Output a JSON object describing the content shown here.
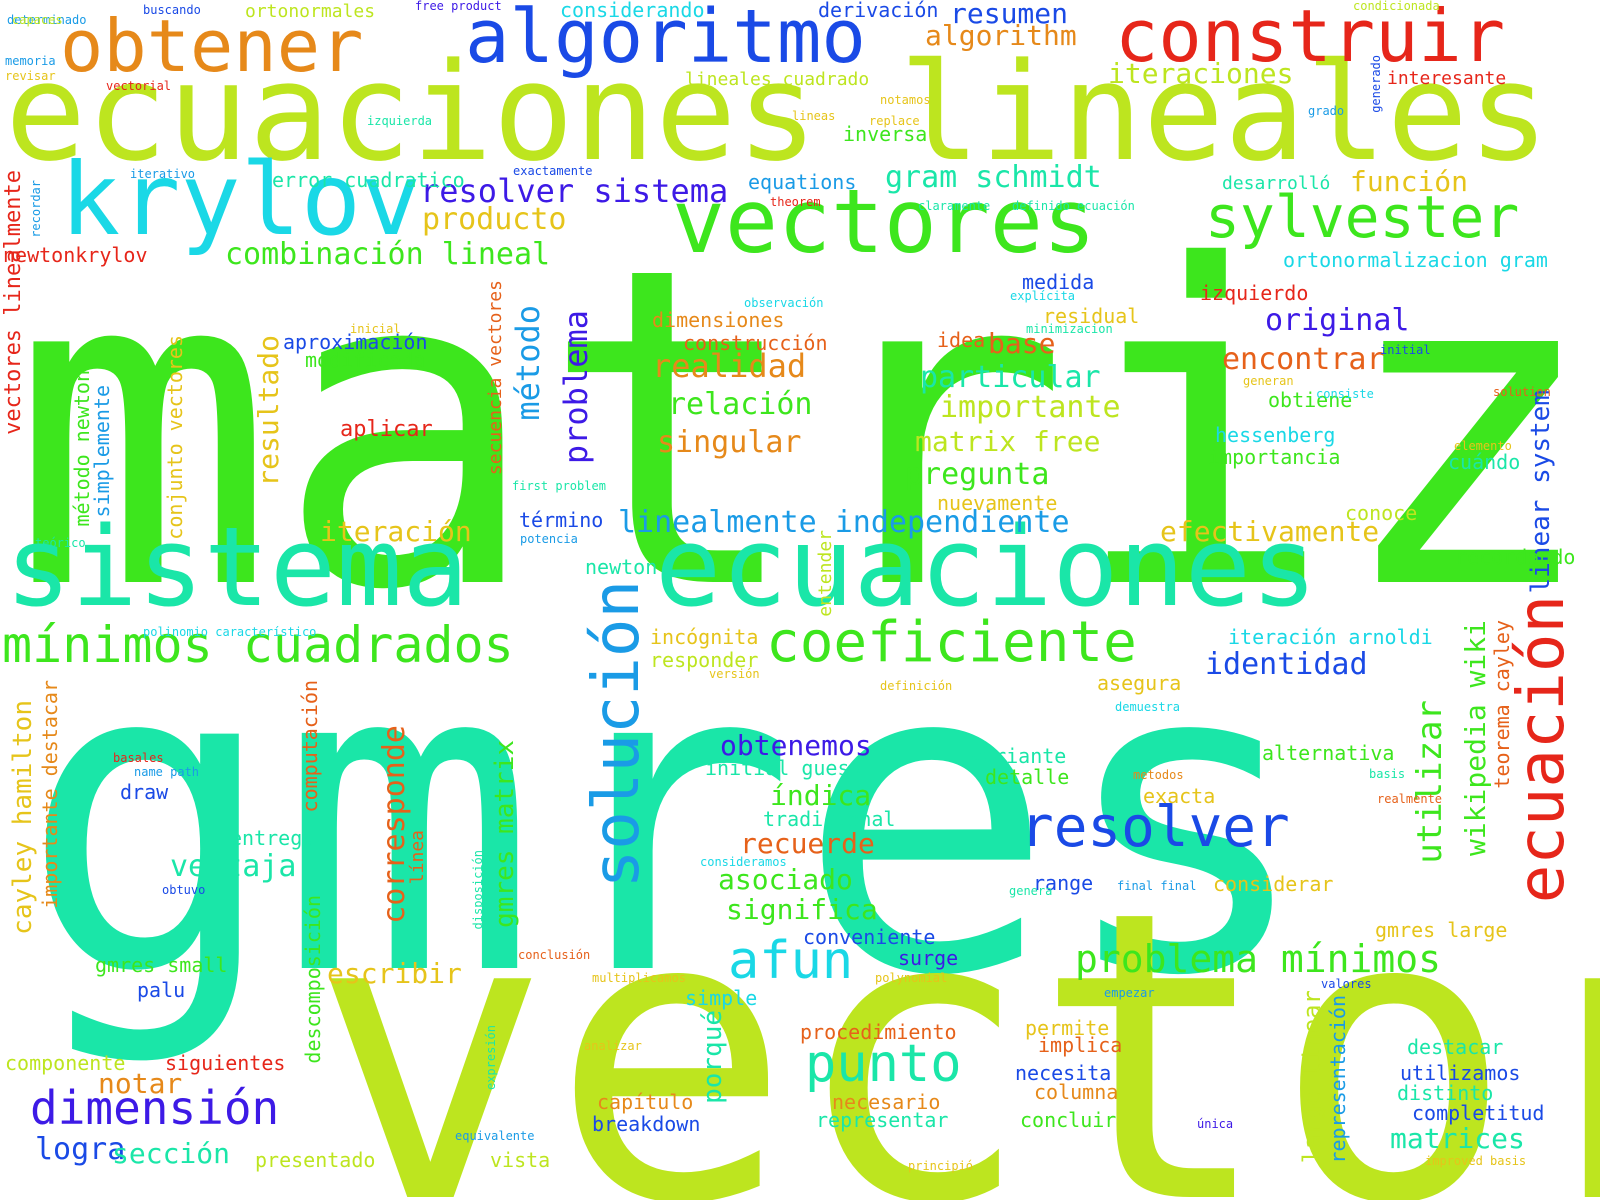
{
  "colors": {
    "background": "#ffffff",
    "lime": "#bde51f",
    "green": "#3de61d",
    "teal": "#1ae6a8",
    "cyan": "#1ad8e6",
    "sky": "#1a9be6",
    "blue": "#1a4ae6",
    "indigo": "#3d1ae6",
    "orange": "#e6891a",
    "amber": "#e6c41a",
    "red": "#e6261a",
    "darkorange": "#e6611a"
  },
  "words": [
    {
      "text": "matriz",
      "color": "green"
    },
    {
      "text": "gmres",
      "color": "teal"
    },
    {
      "text": "vector",
      "color": "lime"
    },
    {
      "text": "ecuaciones lineales",
      "color": "lime"
    },
    {
      "text": "sistema",
      "color": "teal"
    },
    {
      "text": "ecuaciones",
      "color": "teal"
    },
    {
      "text": "krylov",
      "color": "cyan"
    },
    {
      "text": "vectores",
      "color": "green"
    },
    {
      "text": "construir",
      "color": "red"
    },
    {
      "text": "algoritmo",
      "color": "blue"
    },
    {
      "text": "obtener",
      "color": "orange"
    },
    {
      "text": "solución",
      "color": "sky"
    },
    {
      "text": "ecuación",
      "color": "red"
    },
    {
      "text": "coeficiente",
      "color": "green"
    },
    {
      "text": "sylvester",
      "color": "green"
    },
    {
      "text": "mínimos cuadrados",
      "color": "green"
    },
    {
      "text": "resolver",
      "color": "blue"
    },
    {
      "text": "dimensión",
      "color": "indigo"
    },
    {
      "text": "punto",
      "color": "teal"
    },
    {
      "text": "afun",
      "color": "cyan"
    },
    {
      "text": "problema mínimos",
      "color": "green"
    },
    {
      "text": "resolver sistema",
      "color": "indigo"
    },
    {
      "text": "gram schmidt",
      "color": "teal"
    },
    {
      "text": "combinación lineal",
      "color": "green"
    },
    {
      "text": "linealmente independiente",
      "color": "sky"
    },
    {
      "text": "producto",
      "color": "amber"
    },
    {
      "text": "algorithm",
      "color": "orange"
    },
    {
      "text": "iteraciones",
      "color": "lime"
    },
    {
      "text": "resumen",
      "color": "blue"
    },
    {
      "text": "función",
      "color": "amber"
    },
    {
      "text": "original",
      "color": "indigo"
    },
    {
      "text": "encontrar",
      "color": "darkorange"
    },
    {
      "text": "realidad",
      "color": "orange"
    },
    {
      "text": "particular",
      "color": "teal"
    },
    {
      "text": "importante",
      "color": "lime"
    },
    {
      "text": "relación",
      "color": "green"
    },
    {
      "text": "singular",
      "color": "orange"
    },
    {
      "text": "matrix free",
      "color": "lime"
    },
    {
      "text": "pregunta",
      "color": "green"
    },
    {
      "text": "base",
      "color": "darkorange"
    },
    {
      "text": "iteración",
      "color": "amber"
    },
    {
      "text": "efectivamente",
      "color": "amber"
    },
    {
      "text": "identidad",
      "color": "blue"
    },
    {
      "text": "obtenemos",
      "color": "indigo"
    },
    {
      "text": "índica",
      "color": "green"
    },
    {
      "text": "recuerde",
      "color": "darkorange"
    },
    {
      "text": "asociado",
      "color": "green"
    },
    {
      "text": "significa",
      "color": "green"
    },
    {
      "text": "ventaja",
      "color": "teal"
    },
    {
      "text": "escribir",
      "color": "amber"
    },
    {
      "text": "notar",
      "color": "orange"
    },
    {
      "text": "logra",
      "color": "blue"
    },
    {
      "text": "sección",
      "color": "teal"
    },
    {
      "text": "matrices",
      "color": "teal"
    },
    {
      "text": "utilizar",
      "color": "green"
    },
    {
      "text": "wikipedia wiki",
      "color": "green"
    },
    {
      "text": "linear system",
      "color": "blue"
    },
    {
      "text": "método",
      "color": "sky"
    },
    {
      "text": "problema",
      "color": "indigo"
    },
    {
      "text": "resultado",
      "color": "amber"
    },
    {
      "text": "corresponde",
      "color": "darkorange"
    },
    {
      "text": "gmres matrix",
      "color": "green"
    },
    {
      "text": "cayley hamilton",
      "color": "amber"
    },
    {
      "text": "porqué",
      "color": "teal"
    },
    {
      "text": "teorema cayley",
      "color": "darkorange"
    },
    {
      "text": "large linear",
      "color": "lime"
    },
    {
      "text": "representación",
      "color": "sky"
    },
    {
      "text": "secuencia vectores",
      "color": "darkorange"
    },
    {
      "text": "conjunto vectores",
      "color": "amber"
    },
    {
      "text": "método newton",
      "color": "green"
    },
    {
      "text": "simplemente",
      "color": "sky"
    },
    {
      "text": "importante destacar",
      "color": "orange"
    },
    {
      "text": "vectores linealmente",
      "color": "red"
    },
    {
      "text": "recordar",
      "color": "sky"
    },
    {
      "text": "computación",
      "color": "darkorange"
    },
    {
      "text": "descomposición",
      "color": "green"
    },
    {
      "text": "línea",
      "color": "darkorange"
    },
    {
      "text": "entender",
      "color": "lime"
    },
    {
      "text": "disposición",
      "color": "teal"
    },
    {
      "text": "expresión",
      "color": "teal"
    },
    {
      "text": "generado",
      "color": "blue"
    },
    {
      "text": "newtonkrylov",
      "color": "red"
    },
    {
      "text": "error cuadratico",
      "color": "teal"
    },
    {
      "text": "equations",
      "color": "sky"
    },
    {
      "text": "desarrolló",
      "color": "teal"
    },
    {
      "text": "inversa",
      "color": "green"
    },
    {
      "text": "ortonormalizacion gram",
      "color": "cyan"
    },
    {
      "text": "izquierdo",
      "color": "red"
    },
    {
      "text": "medida",
      "color": "blue"
    },
    {
      "text": "residual",
      "color": "amber"
    },
    {
      "text": "dimensiones",
      "color": "orange"
    },
    {
      "text": "construcción",
      "color": "darkorange"
    },
    {
      "text": "aproximación",
      "color": "blue"
    },
    {
      "text": "modificada",
      "color": "green"
    },
    {
      "text": "aplicar",
      "color": "red"
    },
    {
      "text": "idea",
      "color": "darkorange"
    },
    {
      "text": "obtiene",
      "color": "green"
    },
    {
      "text": "hessenberg",
      "color": "cyan"
    },
    {
      "text": "importancia",
      "color": "green"
    },
    {
      "text": "cuándo",
      "color": "teal"
    },
    {
      "text": "conoce",
      "color": "lime"
    },
    {
      "text": "recordando",
      "color": "green"
    },
    {
      "text": "nuevamente",
      "color": "amber"
    },
    {
      "text": "término",
      "color": "blue"
    },
    {
      "text": "newton",
      "color": "teal"
    },
    {
      "text": "incógnita",
      "color": "amber"
    },
    {
      "text": "responder",
      "color": "lime"
    },
    {
      "text": "asegura",
      "color": "amber"
    },
    {
      "text": "iteración arnoldi",
      "color": "cyan"
    },
    {
      "text": "initial guess",
      "color": "teal"
    },
    {
      "text": "tradicional",
      "color": "teal"
    },
    {
      "text": "variante",
      "color": "teal"
    },
    {
      "text": "detalle",
      "color": "green"
    },
    {
      "text": "exacta",
      "color": "amber"
    },
    {
      "text": "alternativa",
      "color": "green"
    },
    {
      "text": "considerar",
      "color": "amber"
    },
    {
      "text": "gmres large",
      "color": "amber"
    },
    {
      "text": "range",
      "color": "blue"
    },
    {
      "text": "conveniente",
      "color": "blue"
    },
    {
      "text": "surge",
      "color": "indigo"
    },
    {
      "text": "simple",
      "color": "cyan"
    },
    {
      "text": "procedimiento",
      "color": "darkorange"
    },
    {
      "text": "permite",
      "color": "amber"
    },
    {
      "text": "implica",
      "color": "darkorange"
    },
    {
      "text": "necesita",
      "color": "blue"
    },
    {
      "text": "columna",
      "color": "orange"
    },
    {
      "text": "capítulo",
      "color": "orange"
    },
    {
      "text": "necesario",
      "color": "orange"
    },
    {
      "text": "breakdown",
      "color": "blue"
    },
    {
      "text": "representar",
      "color": "teal"
    },
    {
      "text": "concluir",
      "color": "green"
    },
    {
      "text": "destacar",
      "color": "teal"
    },
    {
      "text": "utilizamos",
      "color": "blue"
    },
    {
      "text": "distinto",
      "color": "teal"
    },
    {
      "text": "completitud",
      "color": "blue"
    },
    {
      "text": "vista",
      "color": "lime"
    },
    {
      "text": "presentado",
      "color": "lime"
    },
    {
      "text": "componente",
      "color": "lime"
    },
    {
      "text": "siguientes",
      "color": "red"
    },
    {
      "text": "gmres small",
      "color": "green"
    },
    {
      "text": "palu",
      "color": "blue"
    },
    {
      "text": "entrega",
      "color": "teal"
    },
    {
      "text": "draw",
      "color": "blue"
    },
    {
      "text": "considerando",
      "color": "cyan"
    },
    {
      "text": "derivación",
      "color": "blue"
    },
    {
      "text": "ortonormales",
      "color": "lime"
    },
    {
      "text": "lineales cuadrado",
      "color": "lime"
    },
    {
      "text": "interesante",
      "color": "red"
    },
    {
      "text": "condicionada",
      "color": "lime"
    },
    {
      "text": "free product",
      "color": "indigo"
    },
    {
      "text": "buscando",
      "color": "blue"
    },
    {
      "text": "determinado",
      "color": "sky"
    },
    {
      "text": "capaces",
      "color": "lime"
    },
    {
      "text": "memoria",
      "color": "sky"
    },
    {
      "text": "revisar",
      "color": "amber"
    },
    {
      "text": "vectorial",
      "color": "red"
    },
    {
      "text": "izquierda",
      "color": "teal"
    },
    {
      "text": "iterativo",
      "color": "sky"
    },
    {
      "text": "exactamente",
      "color": "blue"
    },
    {
      "text": "lineas",
      "color": "amber"
    },
    {
      "text": "replace",
      "color": "amber"
    },
    {
      "text": "notamos",
      "color": "amber"
    },
    {
      "text": "grado",
      "color": "sky"
    },
    {
      "text": "theorem",
      "color": "red"
    },
    {
      "text": "claramente",
      "color": "teal"
    },
    {
      "text": "definido ecuación",
      "color": "teal"
    },
    {
      "text": "observación",
      "color": "cyan"
    },
    {
      "text": "explícita",
      "color": "cyan"
    },
    {
      "text": "minimizacion",
      "color": "teal"
    },
    {
      "text": "inicial",
      "color": "amber"
    },
    {
      "text": "initial",
      "color": "blue"
    },
    {
      "text": "generan",
      "color": "amber"
    },
    {
      "text": "consiste",
      "color": "cyan"
    },
    {
      "text": "solution",
      "color": "darkorange"
    },
    {
      "text": "elemento",
      "color": "amber"
    },
    {
      "text": "first problem",
      "color": "teal"
    },
    {
      "text": "potencia",
      "color": "sky"
    },
    {
      "text": "teórico",
      "color": "teal"
    },
    {
      "text": "polinomio característico",
      "color": "cyan"
    },
    {
      "text": "versión",
      "color": "amber"
    },
    {
      "text": "definición",
      "color": "amber"
    },
    {
      "text": "demuestra",
      "color": "cyan"
    },
    {
      "text": "basales",
      "color": "red"
    },
    {
      "text": "name path",
      "color": "sky"
    },
    {
      "text": "metodos",
      "color": "orange"
    },
    {
      "text": "basis",
      "color": "teal"
    },
    {
      "text": "realmente",
      "color": "darkorange"
    },
    {
      "text": "consideramos",
      "color": "cyan"
    },
    {
      "text": "genera",
      "color": "teal"
    },
    {
      "text": "final final",
      "color": "sky"
    },
    {
      "text": "obtuvo",
      "color": "blue"
    },
    {
      "text": "conclusión",
      "color": "darkorange"
    },
    {
      "text": "multiplicamos",
      "color": "amber"
    },
    {
      "text": "polynomial",
      "color": "amber"
    },
    {
      "text": "empezar",
      "color": "sky"
    },
    {
      "text": "valores",
      "color": "blue"
    },
    {
      "text": "analizar",
      "color": "amber"
    },
    {
      "text": "única",
      "color": "indigo"
    },
    {
      "text": "equivalente",
      "color": "sky"
    },
    {
      "text": "principió",
      "color": "amber"
    },
    {
      "text": "improved basis",
      "color": "amber"
    }
  ]
}
